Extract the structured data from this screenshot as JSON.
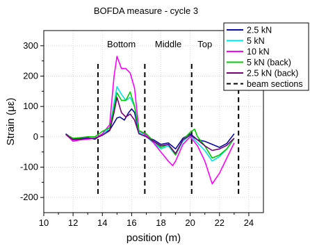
{
  "chart_data": {
    "type": "line",
    "title": "BOFDA measure - cycle 3",
    "xlabel": "position (m)",
    "ylabel": "Strain (με)",
    "xlim": [
      10,
      25
    ],
    "ylim": [
      -250,
      350
    ],
    "xticks": [
      10,
      12,
      14,
      16,
      18,
      20,
      22,
      24
    ],
    "yticks": [
      -200,
      -100,
      0,
      100,
      200,
      300
    ],
    "grid": true,
    "legend_position": "top-right",
    "section_lines": {
      "name": "beam sections",
      "x": [
        13.7,
        16.9,
        20.1,
        23.3
      ],
      "color": "#000000"
    },
    "section_labels": [
      {
        "text": "Bottom",
        "x": 15.3,
        "y": 295
      },
      {
        "text": "Middle",
        "x": 18.5,
        "y": 295
      },
      {
        "text": "Top",
        "x": 21.0,
        "y": 295
      }
    ],
    "series": [
      {
        "name": "2.5 kN",
        "color": "#0a0aa8",
        "x": [
          11.5,
          12.0,
          12.5,
          13.0,
          13.5,
          14.0,
          14.5,
          15.0,
          15.2,
          15.5,
          15.8,
          16.0,
          16.2,
          16.5,
          17.0,
          17.5,
          18.0,
          18.5,
          19.0,
          19.5,
          20.0,
          20.5,
          21.0,
          21.5,
          22.0,
          22.5,
          23.0
        ],
        "y": [
          10,
          -8,
          -5,
          -3,
          -8,
          8,
          22,
          62,
          65,
          55,
          80,
          92,
          80,
          12,
          0,
          -10,
          -25,
          -20,
          -40,
          -5,
          10,
          -10,
          -15,
          -25,
          -35,
          -22,
          10
        ]
      },
      {
        "name": "5 kN",
        "color": "#00e5e5",
        "x": [
          11.5,
          12.0,
          12.5,
          13.0,
          13.5,
          14.0,
          14.5,
          14.8,
          15.0,
          15.3,
          15.6,
          15.9,
          16.2,
          16.5,
          17.0,
          17.5,
          18.0,
          18.5,
          19.0,
          19.5,
          20.0,
          20.5,
          21.0,
          21.5,
          22.0,
          22.5,
          23.0
        ],
        "y": [
          8,
          -10,
          -8,
          -5,
          -5,
          5,
          30,
          110,
          165,
          140,
          120,
          130,
          100,
          15,
          0,
          -20,
          -40,
          -30,
          -60,
          -15,
          5,
          -20,
          -45,
          -80,
          -65,
          -40,
          -5
        ]
      },
      {
        "name": "10 kN",
        "color": "#ff00ff",
        "x": [
          11.5,
          12.0,
          12.5,
          13.0,
          13.5,
          14.0,
          14.5,
          14.8,
          15.0,
          15.3,
          15.6,
          15.9,
          16.2,
          16.5,
          17.0,
          17.5,
          18.0,
          18.5,
          18.8,
          19.0,
          19.5,
          20.0,
          20.5,
          21.0,
          21.5,
          22.0,
          22.5,
          23.0
        ],
        "y": [
          8,
          -15,
          -10,
          -8,
          -5,
          10,
          40,
          200,
          265,
          225,
          225,
          210,
          160,
          20,
          5,
          -20,
          -50,
          -80,
          -95,
          -80,
          -25,
          0,
          -30,
          -80,
          -155,
          -120,
          -70,
          -20
        ]
      },
      {
        "name": "5 kN (back)",
        "color": "#00cc00",
        "x": [
          11.5,
          12.0,
          12.5,
          13.0,
          13.5,
          14.0,
          14.5,
          14.8,
          15.0,
          15.3,
          15.6,
          15.9,
          16.2,
          16.5,
          17.0,
          17.5,
          18.0,
          18.5,
          19.0,
          19.5,
          20.0,
          20.3,
          20.5,
          21.0,
          21.5,
          22.0,
          22.5,
          23.0
        ],
        "y": [
          8,
          -5,
          -3,
          0,
          0,
          18,
          30,
          95,
          145,
          120,
          120,
          148,
          100,
          20,
          10,
          -15,
          -35,
          -25,
          -60,
          -10,
          15,
          25,
          0,
          -30,
          -70,
          -60,
          -40,
          -5
        ]
      },
      {
        "name": "2.5 kN (back)",
        "color": "#7a007a",
        "x": [
          11.5,
          12.0,
          12.5,
          13.0,
          13.5,
          14.0,
          14.5,
          14.8,
          15.0,
          15.3,
          15.6,
          15.9,
          16.2,
          16.5,
          17.0,
          17.5,
          18.0,
          18.5,
          19.0,
          19.5,
          20.0,
          20.5,
          21.0,
          21.5,
          22.0,
          22.5,
          23.0
        ],
        "y": [
          8,
          -10,
          -8,
          -5,
          -5,
          5,
          20,
          80,
          130,
          80,
          65,
          75,
          55,
          10,
          0,
          -15,
          -30,
          -25,
          -55,
          -10,
          5,
          -10,
          -30,
          -45,
          -40,
          -28,
          -5
        ]
      }
    ]
  }
}
